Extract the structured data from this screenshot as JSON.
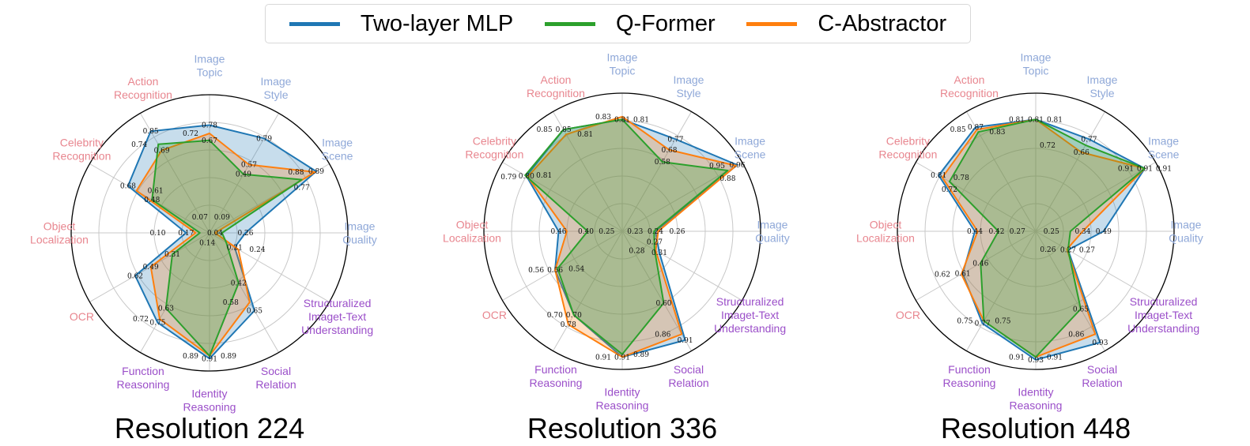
{
  "legend": [
    {
      "name": "Two-layer MLP",
      "color": "#1f77b4"
    },
    {
      "name": "Q-Former",
      "color": "#2ca02c"
    },
    {
      "name": "C-Abstractor",
      "color": "#ff7f0e"
    }
  ],
  "category_colors": {
    "perception": "#8fa8d8",
    "recognition": "#e8868f",
    "reasoning": "#9b4fc9"
  },
  "chart_data": [
    {
      "type": "radar",
      "title": "Resolution 224",
      "categories": [
        "Image Topic",
        "Image Style",
        "Image Scene",
        "Image Quality",
        "Structuralized Imaget-Text Understanding",
        "Social Relation",
        "Identity Reasoning",
        "Function Reasoning",
        "OCR",
        "Object Localization",
        "Celebrity Recognition",
        "Action Recognition"
      ],
      "series": [
        {
          "name": "Two-layer MLP",
          "values": [
            0.78,
            0.79,
            0.89,
            0.26,
            0.21,
            0.65,
            0.91,
            0.75,
            0.62,
            0.17,
            0.68,
            0.85
          ]
        },
        {
          "name": "C-Abstractor",
          "values": [
            0.72,
            0.57,
            0.88,
            0.04,
            0.24,
            0.58,
            0.89,
            0.72,
            0.49,
            0.1,
            0.61,
            0.69
          ]
        },
        {
          "name": "Q-Former",
          "values": [
            0.67,
            0.49,
            0.77,
            0.09,
            0.14,
            0.42,
            0.89,
            0.63,
            0.31,
            0.07,
            0.48,
            0.74
          ]
        }
      ]
    },
    {
      "type": "radar",
      "title": "Resolution 336",
      "categories": [
        "Image Topic",
        "Image Style",
        "Image Scene",
        "Image Quality",
        "Structuralized Imaget-Text Understanding",
        "Social Relation",
        "Identity Reasoning",
        "Function Reasoning",
        "OCR",
        "Object Localization",
        "Celebrity Recognition",
        "Action Recognition"
      ],
      "series": [
        {
          "name": "Two-layer MLP",
          "values": [
            0.81,
            0.77,
            0.96,
            0.24,
            0.31,
            0.91,
            0.91,
            0.7,
            0.56,
            0.46,
            0.8,
            0.85
          ]
        },
        {
          "name": "C-Abstractor",
          "values": [
            0.83,
            0.68,
            0.95,
            0.26,
            0.28,
            0.86,
            0.91,
            0.78,
            0.56,
            0.4,
            0.79,
            0.81
          ]
        },
        {
          "name": "Q-Former",
          "values": [
            0.81,
            0.58,
            0.88,
            0.23,
            0.27,
            0.6,
            0.89,
            0.7,
            0.54,
            0.25,
            0.81,
            0.85
          ]
        }
      ]
    },
    {
      "type": "radar",
      "title": "Resolution 448",
      "categories": [
        "Image Topic",
        "Image Style",
        "Image Scene",
        "Image Quality",
        "Structuralized Imaget-Text Understanding",
        "Social Relation",
        "Identity Reasoning",
        "Function Reasoning",
        "OCR",
        "Object Localization",
        "Celebrity Recognition",
        "Action Recognition"
      ],
      "series": [
        {
          "name": "Two-layer MLP",
          "values": [
            0.81,
            0.77,
            0.91,
            0.49,
            0.27,
            0.93,
            0.93,
            0.77,
            0.61,
            0.44,
            0.81,
            0.87
          ]
        },
        {
          "name": "C-Abstractor",
          "values": [
            0.81,
            0.66,
            0.91,
            0.34,
            0.26,
            0.86,
            0.91,
            0.75,
            0.62,
            0.42,
            0.78,
            0.85
          ]
        },
        {
          "name": "Q-Former",
          "values": [
            0.81,
            0.72,
            0.91,
            0.25,
            0.27,
            0.65,
            0.91,
            0.75,
            0.46,
            0.27,
            0.72,
            0.83
          ]
        }
      ]
    }
  ]
}
